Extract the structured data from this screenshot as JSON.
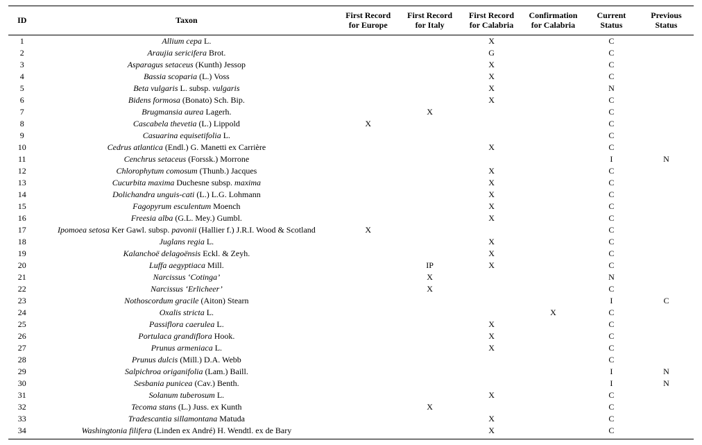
{
  "headers": {
    "id": "ID",
    "taxon": "Taxon",
    "eu": "First Record\nfor Europe",
    "it": "First Record\nfor Italy",
    "ca": "First Record\nfor Calabria",
    "conf": "Confirmation\nfor Calabria",
    "cur": "Current\nStatus",
    "prev": "Previous\nStatus"
  },
  "rows": [
    {
      "id": "1",
      "taxon": [
        {
          "i": true,
          "t": "Allium cepa"
        },
        {
          "i": false,
          "t": " L."
        }
      ],
      "eu": "",
      "it": "",
      "ca": "X",
      "conf": "",
      "cur": "C",
      "prev": ""
    },
    {
      "id": "2",
      "taxon": [
        {
          "i": true,
          "t": "Araujia sericifera"
        },
        {
          "i": false,
          "t": " Brot."
        }
      ],
      "eu": "",
      "it": "",
      "ca": "G",
      "conf": "",
      "cur": "C",
      "prev": ""
    },
    {
      "id": "3",
      "taxon": [
        {
          "i": true,
          "t": "Asparagus setaceus"
        },
        {
          "i": false,
          "t": " (Kunth) Jessop"
        }
      ],
      "eu": "",
      "it": "",
      "ca": "X",
      "conf": "",
      "cur": "C",
      "prev": ""
    },
    {
      "id": "4",
      "taxon": [
        {
          "i": true,
          "t": "Bassia scoparia"
        },
        {
          "i": false,
          "t": " (L.) Voss"
        }
      ],
      "eu": "",
      "it": "",
      "ca": "X",
      "conf": "",
      "cur": "C",
      "prev": ""
    },
    {
      "id": "5",
      "taxon": [
        {
          "i": true,
          "t": "Beta vulgaris"
        },
        {
          "i": false,
          "t": " L. subsp. "
        },
        {
          "i": true,
          "t": "vulgaris"
        }
      ],
      "eu": "",
      "it": "",
      "ca": "X",
      "conf": "",
      "cur": "N",
      "prev": ""
    },
    {
      "id": "6",
      "taxon": [
        {
          "i": true,
          "t": "Bidens formosa"
        },
        {
          "i": false,
          "t": " (Bonato) Sch. Bip."
        }
      ],
      "eu": "",
      "it": "",
      "ca": "X",
      "conf": "",
      "cur": "C",
      "prev": ""
    },
    {
      "id": "7",
      "taxon": [
        {
          "i": true,
          "t": "Brugmansia aurea"
        },
        {
          "i": false,
          "t": " Lagerh."
        }
      ],
      "eu": "",
      "it": "X",
      "ca": "",
      "conf": "",
      "cur": "C",
      "prev": ""
    },
    {
      "id": "8",
      "taxon": [
        {
          "i": true,
          "t": "Cascabela thevetia"
        },
        {
          "i": false,
          "t": " (L.) Lippold"
        }
      ],
      "eu": "X",
      "it": "",
      "ca": "",
      "conf": "",
      "cur": "C",
      "prev": ""
    },
    {
      "id": "9",
      "taxon": [
        {
          "i": true,
          "t": "Casuarina equisetifolia"
        },
        {
          "i": false,
          "t": " L."
        }
      ],
      "eu": "",
      "it": "",
      "ca": "",
      "conf": "",
      "cur": "C",
      "prev": ""
    },
    {
      "id": "10",
      "taxon": [
        {
          "i": true,
          "t": "Cedrus atlantica"
        },
        {
          "i": false,
          "t": " (Endl.) G. Manetti ex Carrière"
        }
      ],
      "eu": "",
      "it": "",
      "ca": "X",
      "conf": "",
      "cur": "C",
      "prev": ""
    },
    {
      "id": "11",
      "taxon": [
        {
          "i": true,
          "t": "Cenchrus setaceus"
        },
        {
          "i": false,
          "t": " (Forssk.) Morrone"
        }
      ],
      "eu": "",
      "it": "",
      "ca": "",
      "conf": "",
      "cur": "I",
      "prev": "N"
    },
    {
      "id": "12",
      "taxon": [
        {
          "i": true,
          "t": "Chlorophytum comosum"
        },
        {
          "i": false,
          "t": " (Thunb.) Jacques"
        }
      ],
      "eu": "",
      "it": "",
      "ca": "X",
      "conf": "",
      "cur": "C",
      "prev": ""
    },
    {
      "id": "13",
      "taxon": [
        {
          "i": true,
          "t": "Cucurbita maxima"
        },
        {
          "i": false,
          "t": " Duchesne subsp. "
        },
        {
          "i": true,
          "t": "maxima"
        }
      ],
      "eu": "",
      "it": "",
      "ca": "X",
      "conf": "",
      "cur": "C",
      "prev": ""
    },
    {
      "id": "14",
      "taxon": [
        {
          "i": true,
          "t": "Dolichandra unguis-cati"
        },
        {
          "i": false,
          "t": " (L.) L.G. Lohmann"
        }
      ],
      "eu": "",
      "it": "",
      "ca": "X",
      "conf": "",
      "cur": "C",
      "prev": ""
    },
    {
      "id": "15",
      "taxon": [
        {
          "i": true,
          "t": "Fagopyrum esculentum"
        },
        {
          "i": false,
          "t": " Moench"
        }
      ],
      "eu": "",
      "it": "",
      "ca": "X",
      "conf": "",
      "cur": "C",
      "prev": ""
    },
    {
      "id": "16",
      "taxon": [
        {
          "i": true,
          "t": "Freesia alba"
        },
        {
          "i": false,
          "t": " (G.L. Mey.) Gumbl."
        }
      ],
      "eu": "",
      "it": "",
      "ca": "X",
      "conf": "",
      "cur": "C",
      "prev": ""
    },
    {
      "id": "17",
      "taxon": [
        {
          "i": true,
          "t": "Ipomoea setosa"
        },
        {
          "i": false,
          "t": " Ker Gawl. subsp. "
        },
        {
          "i": true,
          "t": "pavonii"
        },
        {
          "i": false,
          "t": " (Hallier f.) J.R.I. Wood & Scotland"
        }
      ],
      "eu": "X",
      "it": "",
      "ca": "",
      "conf": "",
      "cur": "C",
      "prev": ""
    },
    {
      "id": "18",
      "taxon": [
        {
          "i": true,
          "t": "Juglans regia"
        },
        {
          "i": false,
          "t": " L."
        }
      ],
      "eu": "",
      "it": "",
      "ca": "X",
      "conf": "",
      "cur": "C",
      "prev": ""
    },
    {
      "id": "19",
      "taxon": [
        {
          "i": true,
          "t": "Kalanchoë delagoënsis"
        },
        {
          "i": false,
          "t": " Eckl. & Zeyh."
        }
      ],
      "eu": "",
      "it": "",
      "ca": "X",
      "conf": "",
      "cur": "C",
      "prev": ""
    },
    {
      "id": "20",
      "taxon": [
        {
          "i": true,
          "t": "Luffa aegyptiaca"
        },
        {
          "i": false,
          "t": " Mill."
        }
      ],
      "eu": "",
      "it": "IP",
      "ca": "X",
      "conf": "",
      "cur": "C",
      "prev": ""
    },
    {
      "id": "21",
      "taxon": [
        {
          "i": true,
          "t": "Narcissus ‘Cotinga’"
        }
      ],
      "eu": "",
      "it": "X",
      "ca": "",
      "conf": "",
      "cur": "N",
      "prev": ""
    },
    {
      "id": "22",
      "taxon": [
        {
          "i": true,
          "t": "Narcissus ‘Erlicheer’"
        }
      ],
      "eu": "",
      "it": "X",
      "ca": "",
      "conf": "",
      "cur": "C",
      "prev": ""
    },
    {
      "id": "23",
      "taxon": [
        {
          "i": true,
          "t": "Nothoscordum gracile"
        },
        {
          "i": false,
          "t": " (Aiton) Stearn"
        }
      ],
      "eu": "",
      "it": "",
      "ca": "",
      "conf": "",
      "cur": "I",
      "prev": "C"
    },
    {
      "id": "24",
      "taxon": [
        {
          "i": true,
          "t": "Oxalis stricta"
        },
        {
          "i": false,
          "t": " L."
        }
      ],
      "eu": "",
      "it": "",
      "ca": "",
      "conf": "X",
      "cur": "C",
      "prev": ""
    },
    {
      "id": "25",
      "taxon": [
        {
          "i": true,
          "t": "Passiflora caerulea"
        },
        {
          "i": false,
          "t": " L."
        }
      ],
      "eu": "",
      "it": "",
      "ca": "X",
      "conf": "",
      "cur": "C",
      "prev": ""
    },
    {
      "id": "26",
      "taxon": [
        {
          "i": true,
          "t": "Portulaca grandiflora"
        },
        {
          "i": false,
          "t": " Hook."
        }
      ],
      "eu": "",
      "it": "",
      "ca": "X",
      "conf": "",
      "cur": "C",
      "prev": ""
    },
    {
      "id": "27",
      "taxon": [
        {
          "i": true,
          "t": "Prunus armeniaca"
        },
        {
          "i": false,
          "t": " L."
        }
      ],
      "eu": "",
      "it": "",
      "ca": "X",
      "conf": "",
      "cur": "C",
      "prev": ""
    },
    {
      "id": "28",
      "taxon": [
        {
          "i": true,
          "t": "Prunus dulcis"
        },
        {
          "i": false,
          "t": " (Mill.) D.A. Webb"
        }
      ],
      "eu": "",
      "it": "",
      "ca": "",
      "conf": "",
      "cur": "C",
      "prev": ""
    },
    {
      "id": "29",
      "taxon": [
        {
          "i": true,
          "t": "Salpichroa origanifolia"
        },
        {
          "i": false,
          "t": " (Lam.) Baill."
        }
      ],
      "eu": "",
      "it": "",
      "ca": "",
      "conf": "",
      "cur": "I",
      "prev": "N"
    },
    {
      "id": "30",
      "taxon": [
        {
          "i": true,
          "t": "Sesbania punicea"
        },
        {
          "i": false,
          "t": " (Cav.) Benth."
        }
      ],
      "eu": "",
      "it": "",
      "ca": "",
      "conf": "",
      "cur": "I",
      "prev": "N"
    },
    {
      "id": "31",
      "taxon": [
        {
          "i": true,
          "t": "Solanum tuberosum"
        },
        {
          "i": false,
          "t": " L."
        }
      ],
      "eu": "",
      "it": "",
      "ca": "X",
      "conf": "",
      "cur": "C",
      "prev": ""
    },
    {
      "id": "32",
      "taxon": [
        {
          "i": true,
          "t": "Tecoma stans"
        },
        {
          "i": false,
          "t": " (L.) Juss. ex Kunth"
        }
      ],
      "eu": "",
      "it": "X",
      "ca": "",
      "conf": "",
      "cur": "C",
      "prev": ""
    },
    {
      "id": "33",
      "taxon": [
        {
          "i": true,
          "t": "Tradescantia sillamontana"
        },
        {
          "i": false,
          "t": " Matuda"
        }
      ],
      "eu": "",
      "it": "",
      "ca": "X",
      "conf": "",
      "cur": "C",
      "prev": ""
    },
    {
      "id": "34",
      "taxon": [
        {
          "i": true,
          "t": "Washingtonia filifera"
        },
        {
          "i": false,
          "t": " (Linden ex André) H. Wendtl. ex de Bary"
        }
      ],
      "eu": "",
      "it": "",
      "ca": "X",
      "conf": "",
      "cur": "C",
      "prev": ""
    }
  ]
}
